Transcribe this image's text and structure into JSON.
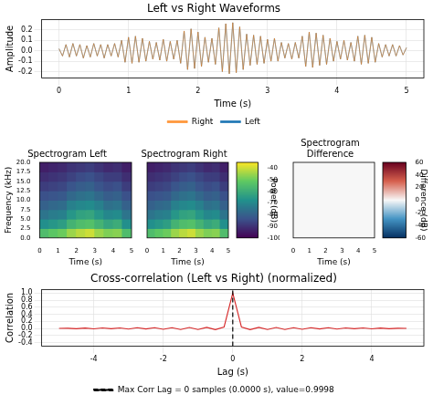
{
  "chart_data": [
    {
      "type": "line",
      "title": "Left vs Right Waveforms",
      "x_label": "Time (s)",
      "y_label": "Amplitude",
      "xlim": [
        -0.25,
        5.25
      ],
      "xticks": [
        0,
        1,
        2,
        3,
        4,
        5
      ],
      "ylim": [
        -0.26,
        0.3
      ],
      "yticks": [
        -0.2,
        -0.1,
        {
          "value": 0,
          "label": "0.0"
        },
        0.1,
        0.2
      ],
      "grid": true,
      "legend": "bottom",
      "x": [
        0,
        0.05,
        0.1,
        0.15,
        0.2,
        0.25,
        0.3,
        0.35,
        0.4,
        0.45,
        0.5,
        0.55,
        0.6,
        0.65,
        0.7,
        0.75,
        0.8,
        0.85,
        0.9,
        0.95,
        1.0,
        1.05,
        1.1,
        1.15,
        1.2,
        1.25,
        1.3,
        1.35,
        1.4,
        1.45,
        1.5,
        1.55,
        1.6,
        1.65,
        1.7,
        1.75,
        1.8,
        1.85,
        1.9,
        1.95,
        2.0,
        2.05,
        2.1,
        2.15,
        2.2,
        2.25,
        2.3,
        2.35,
        2.4,
        2.45,
        2.5,
        2.55,
        2.6,
        2.65,
        2.7,
        2.75,
        2.8,
        2.85,
        2.9,
        2.95,
        3.0,
        3.05,
        3.1,
        3.15,
        3.2,
        3.25,
        3.3,
        3.35,
        3.4,
        3.45,
        3.5,
        3.55,
        3.6,
        3.65,
        3.7,
        3.75,
        3.8,
        3.85,
        3.9,
        3.95,
        4.0,
        4.05,
        4.1,
        4.15,
        4.2,
        4.25,
        4.3,
        4.35,
        4.4,
        4.45,
        4.5,
        4.55,
        4.6,
        4.65,
        4.7,
        4.75,
        4.8,
        4.85,
        4.9,
        4.95,
        5.0
      ],
      "series": [
        {
          "name": "Left",
          "color": "#1f77b4",
          "values": [
            0.02,
            -0.05,
            0.06,
            -0.06,
            0.07,
            -0.05,
            0.06,
            -0.07,
            0.05,
            -0.06,
            0.07,
            -0.05,
            0.06,
            -0.07,
            0.06,
            -0.05,
            0.07,
            -0.06,
            0.1,
            -0.11,
            0.13,
            -0.12,
            0.14,
            -0.11,
            0.12,
            -0.1,
            0.09,
            -0.08,
            0.08,
            -0.09,
            0.11,
            -0.1,
            0.09,
            -0.08,
            0.1,
            -0.12,
            0.19,
            -0.18,
            0.21,
            -0.17,
            0.18,
            -0.15,
            0.13,
            -0.11,
            0.12,
            -0.13,
            0.22,
            -0.2,
            0.26,
            -0.22,
            0.27,
            -0.21,
            0.23,
            -0.18,
            0.16,
            -0.14,
            0.15,
            -0.13,
            0.14,
            -0.12,
            0.11,
            -0.1,
            0.12,
            -0.1,
            0.08,
            -0.07,
            0.07,
            -0.08,
            0.08,
            -0.07,
            0.14,
            -0.15,
            0.18,
            -0.16,
            0.17,
            -0.14,
            0.15,
            -0.13,
            0.12,
            -0.1,
            0.09,
            -0.08,
            0.1,
            -0.09,
            0.08,
            -0.1,
            0.14,
            -0.13,
            0.15,
            -0.12,
            0.13,
            -0.11,
            0.07,
            -0.06,
            0.06,
            -0.05,
            0.06,
            -0.05,
            0.05,
            -0.04,
            0.03
          ]
        },
        {
          "name": "Right",
          "color": "#ff7f0e",
          "values": [
            0.02,
            -0.05,
            0.06,
            -0.06,
            0.07,
            -0.05,
            0.06,
            -0.07,
            0.05,
            -0.06,
            0.07,
            -0.05,
            0.06,
            -0.07,
            0.06,
            -0.05,
            0.07,
            -0.06,
            0.1,
            -0.11,
            0.13,
            -0.12,
            0.14,
            -0.11,
            0.12,
            -0.1,
            0.09,
            -0.08,
            0.08,
            -0.09,
            0.11,
            -0.1,
            0.09,
            -0.08,
            0.1,
            -0.12,
            0.19,
            -0.18,
            0.21,
            -0.17,
            0.18,
            -0.15,
            0.13,
            -0.11,
            0.12,
            -0.13,
            0.22,
            -0.2,
            0.26,
            -0.22,
            0.27,
            -0.21,
            0.23,
            -0.18,
            0.16,
            -0.14,
            0.15,
            -0.13,
            0.14,
            -0.12,
            0.11,
            -0.1,
            0.12,
            -0.1,
            0.08,
            -0.07,
            0.07,
            -0.08,
            0.08,
            -0.07,
            0.14,
            -0.15,
            0.18,
            -0.16,
            0.17,
            -0.14,
            0.15,
            -0.13,
            0.12,
            -0.1,
            0.09,
            -0.08,
            0.1,
            -0.09,
            0.08,
            -0.1,
            0.14,
            -0.13,
            0.15,
            -0.12,
            0.13,
            -0.11,
            0.07,
            -0.06,
            0.06,
            -0.05,
            0.06,
            -0.05,
            0.05,
            -0.04,
            0.03
          ]
        }
      ]
    },
    {
      "type": "heatmap",
      "title": "Spectrogram Left",
      "x_label": "Time (s)",
      "y_label": "Frequency (kHz)",
      "xlim": [
        0,
        5
      ],
      "xticks": [
        0,
        1,
        2,
        3,
        4,
        5
      ],
      "ylim": [
        0,
        20
      ],
      "yticks": [
        {
          "value": 0,
          "label": "0.0"
        },
        2.5,
        {
          "value": 5,
          "label": "5.0"
        },
        7.5,
        {
          "value": 10,
          "label": "10.0"
        },
        12.5,
        {
          "value": 15,
          "label": "15.0"
        },
        17.5,
        {
          "value": 20,
          "label": "20.0"
        }
      ],
      "grid": false,
      "color": "viridis",
      "zlim": [
        -100,
        -35
      ],
      "x_edges": [
        0,
        0.5,
        1,
        1.5,
        2,
        2.5,
        3,
        3.5,
        4,
        4.5,
        5
      ],
      "y_edges": [
        0,
        2.5,
        5,
        7.5,
        10,
        12.5,
        15,
        17.5,
        20
      ],
      "cells": [
        [
          -55,
          -52,
          -50,
          -45,
          -42,
          -40,
          -45,
          -48,
          -47,
          -55
        ],
        [
          -68,
          -66,
          -64,
          -58,
          -55,
          -54,
          -58,
          -62,
          -60,
          -68
        ],
        [
          -75,
          -73,
          -72,
          -66,
          -63,
          -62,
          -66,
          -70,
          -69,
          -75
        ],
        [
          -80,
          -78,
          -77,
          -72,
          -70,
          -69,
          -72,
          -76,
          -75,
          -80
        ],
        [
          -84,
          -83,
          -82,
          -78,
          -76,
          -75,
          -78,
          -81,
          -80,
          -84
        ],
        [
          -88,
          -87,
          -86,
          -83,
          -81,
          -80,
          -83,
          -85,
          -84,
          -88
        ],
        [
          -91,
          -90,
          -89,
          -87,
          -85,
          -84,
          -86,
          -88,
          -88,
          -91
        ],
        [
          -94,
          -93,
          -92,
          -90,
          -89,
          -88,
          -90,
          -92,
          -91,
          -94
        ]
      ]
    },
    {
      "type": "heatmap",
      "title": "Spectrogram Right",
      "x_label": "Time (s)",
      "xlim": [
        0,
        5
      ],
      "xticks": [
        0,
        1,
        2,
        3,
        4,
        5
      ],
      "ylim": [
        0,
        20
      ],
      "yticks": [
        {
          "value": 0,
          "label": "0.0"
        },
        2.5,
        {
          "value": 5,
          "label": "5.0"
        },
        7.5,
        {
          "value": 10,
          "label": "10.0"
        },
        12.5,
        {
          "value": 15,
          "label": "15.0"
        },
        17.5,
        {
          "value": 20,
          "label": "20.0"
        }
      ],
      "tick_labels": "x",
      "grid": false,
      "color": "viridis",
      "zlim": [
        -100,
        -35
      ],
      "colorbar": {
        "label": "Power (dB)",
        "ticks": [
          -100,
          -90,
          -80,
          -70,
          -60,
          -50,
          -40
        ]
      },
      "x_edges": [
        0,
        0.5,
        1,
        1.5,
        2,
        2.5,
        3,
        3.5,
        4,
        4.5,
        5
      ],
      "y_edges": [
        0,
        2.5,
        5,
        7.5,
        10,
        12.5,
        15,
        17.5,
        20
      ],
      "cells": [
        [
          -55,
          -52,
          -50,
          -45,
          -42,
          -40,
          -45,
          -48,
          -47,
          -55
        ],
        [
          -68,
          -66,
          -64,
          -58,
          -55,
          -54,
          -58,
          -62,
          -60,
          -68
        ],
        [
          -75,
          -73,
          -72,
          -66,
          -63,
          -62,
          -66,
          -70,
          -69,
          -75
        ],
        [
          -80,
          -78,
          -77,
          -72,
          -70,
          -69,
          -72,
          -76,
          -75,
          -80
        ],
        [
          -84,
          -83,
          -82,
          -78,
          -76,
          -75,
          -78,
          -81,
          -80,
          -84
        ],
        [
          -88,
          -87,
          -86,
          -83,
          -81,
          -80,
          -83,
          -85,
          -84,
          -88
        ],
        [
          -91,
          -90,
          -89,
          -87,
          -85,
          -84,
          -86,
          -88,
          -88,
          -91
        ],
        [
          -94,
          -93,
          -92,
          -90,
          -89,
          -88,
          -90,
          -92,
          -91,
          -94
        ]
      ]
    },
    {
      "type": "heatmap",
      "title": "Spectrogram Difference",
      "x_label": "Time (s)",
      "xlim": [
        0,
        5
      ],
      "xticks": [
        0,
        1,
        2,
        3,
        4,
        5
      ],
      "ylim": [
        0,
        20
      ],
      "yticks": [
        {
          "value": 0,
          "label": "0.0"
        },
        2.5,
        {
          "value": 5,
          "label": "5.0"
        },
        7.5,
        {
          "value": 10,
          "label": "10.0"
        },
        12.5,
        {
          "value": 15,
          "label": "15.0"
        },
        17.5,
        {
          "value": 20,
          "label": "20.0"
        }
      ],
      "tick_labels": "x",
      "grid": false,
      "color": "RdBu_r",
      "zlim": [
        -60,
        60
      ],
      "colorbar": {
        "label": "Difference (dB)",
        "ticks": [
          -60,
          -40,
          -20,
          0,
          20,
          40,
          60
        ]
      },
      "x_edges": [
        0,
        0.5,
        1,
        1.5,
        2,
        2.5,
        3,
        3.5,
        4,
        4.5,
        5
      ],
      "y_edges": [
        0,
        2.5,
        5,
        7.5,
        10,
        12.5,
        15,
        17.5,
        20
      ],
      "cells": [
        [
          0,
          0,
          0,
          0,
          0,
          0,
          0,
          0,
          0,
          0
        ],
        [
          0,
          0,
          0,
          0,
          0,
          0,
          0,
          0,
          0,
          0
        ],
        [
          0,
          0,
          0,
          0,
          0,
          0,
          0,
          0,
          0,
          0
        ],
        [
          0,
          0,
          0,
          0,
          0,
          0,
          0,
          0,
          0,
          0
        ],
        [
          0,
          0,
          0,
          0,
          0,
          0,
          0,
          0,
          0,
          0
        ],
        [
          0,
          0,
          0,
          0,
          0,
          0,
          0,
          0,
          0,
          0
        ],
        [
          0,
          0,
          0,
          0,
          0,
          0,
          0,
          0,
          0,
          0
        ],
        [
          0,
          0,
          0,
          0,
          0,
          0,
          0,
          0,
          0,
          0
        ]
      ]
    },
    {
      "type": "line",
      "title": "Cross-correlation (Left vs Right) (normalized)",
      "x_label": "Lag (s)",
      "y_label": "Correlation",
      "xlim": [
        -5.5,
        5.5
      ],
      "xticks": [
        -4,
        -2,
        0,
        2,
        4
      ],
      "ylim": [
        -0.5,
        1.1
      ],
      "yticks": [
        -0.4,
        -0.2,
        {
          "value": 0,
          "label": "0.0"
        },
        0.2,
        0.4,
        0.6,
        0.8,
        {
          "value": 1,
          "label": "1.0"
        }
      ],
      "grid": true,
      "legend": "bottom",
      "x": [
        -5,
        -4.75,
        -4.5,
        -4.25,
        -4,
        -3.75,
        -3.5,
        -3.25,
        -3,
        -2.75,
        -2.5,
        -2.25,
        -2,
        -1.75,
        -1.5,
        -1.25,
        -1,
        -0.75,
        -0.5,
        -0.25,
        0,
        0.25,
        0.5,
        0.75,
        1,
        1.25,
        1.5,
        1.75,
        2,
        2.25,
        2.5,
        2.75,
        3,
        3.25,
        3.5,
        3.75,
        4,
        4.25,
        4.5,
        4.75,
        5
      ],
      "series": [
        {
          "color": "#d62728",
          "values": [
            0,
            0.005,
            -0.008,
            0.01,
            -0.012,
            0.015,
            -0.01,
            0.012,
            -0.02,
            0.018,
            -0.015,
            0.02,
            -0.025,
            0.02,
            -0.03,
            0.025,
            -0.03,
            0.03,
            -0.035,
            0.04,
            0.9998,
            0.04,
            -0.035,
            0.03,
            -0.03,
            0.025,
            -0.03,
            0.02,
            -0.025,
            0.02,
            -0.015,
            0.018,
            -0.02,
            0.012,
            -0.01,
            0.015,
            -0.012,
            0.01,
            -0.008,
            0.005,
            0
          ]
        },
        {
          "name": "Max Corr Lag = 0 samples (0.0000 s), value=0.9998",
          "type": "vline",
          "x": 0,
          "color": "#000000",
          "line_style": "dashed"
        }
      ]
    }
  ]
}
